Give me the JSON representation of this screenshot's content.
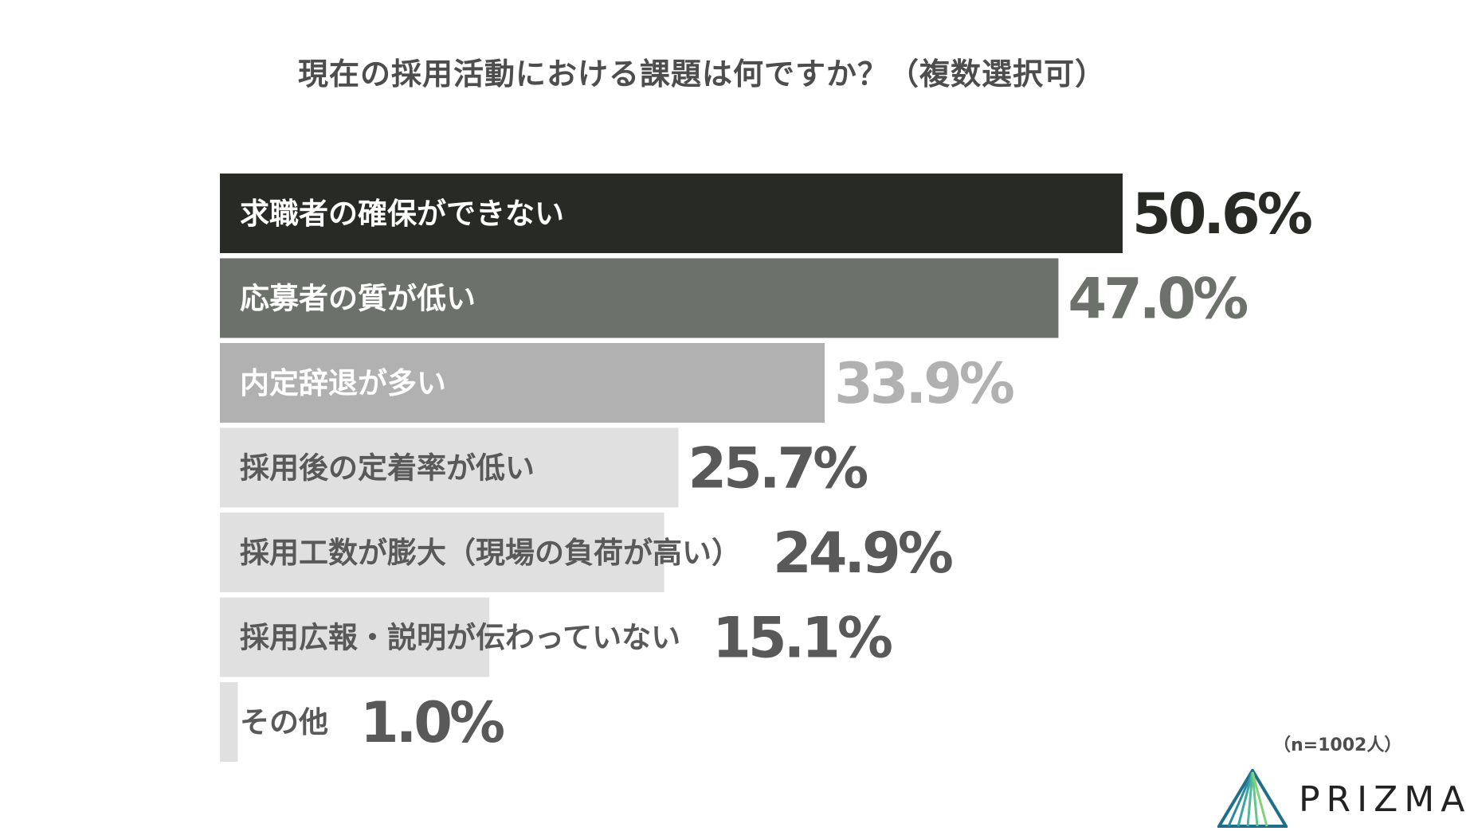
{
  "chart_data": {
    "type": "bar",
    "orientation": "horizontal",
    "title": "現在の採用活動における課題は何ですか？（複数選択可）",
    "categories": [
      "求職者の確保ができない",
      "応募者の質が低い",
      "内定辞退が多い",
      "採用後の定着率が低い",
      "採用工数が膨大（現場の負荷が高い）",
      "採用広報・説明が伝わっていない",
      "その他"
    ],
    "values": [
      50.6,
      47.0,
      33.9,
      25.7,
      24.9,
      15.1,
      1.0
    ],
    "value_labels": [
      "50.6%",
      "47.0%",
      "33.9%",
      "25.7%",
      "24.9%",
      "15.1%",
      "1.0%"
    ],
    "unit": "%",
    "xlim": [
      0,
      50.6
    ],
    "grid": false,
    "legend": "none",
    "bar_colors": [
      "#282b25",
      "#6d716b",
      "#b1b1b1",
      "#e0e0e0",
      "#e0e0e0",
      "#e0e0e0",
      "#e0e0e0"
    ],
    "label_colors": [
      "#ffffff",
      "#ffffff",
      "#ffffff",
      "#595959",
      "#595959",
      "#595959",
      "#595959"
    ],
    "value_colors": [
      "#282b25",
      "#6d716b",
      "#b1b1b1",
      "#595959",
      "#595959",
      "#595959",
      "#595959"
    ]
  },
  "sample_size": "（n=1002人）",
  "brand": {
    "name": "PRIZMA",
    "accent": "#3aa6a0",
    "accent_dark": "#1f6f8b",
    "accent_light": "#7fd37a"
  }
}
